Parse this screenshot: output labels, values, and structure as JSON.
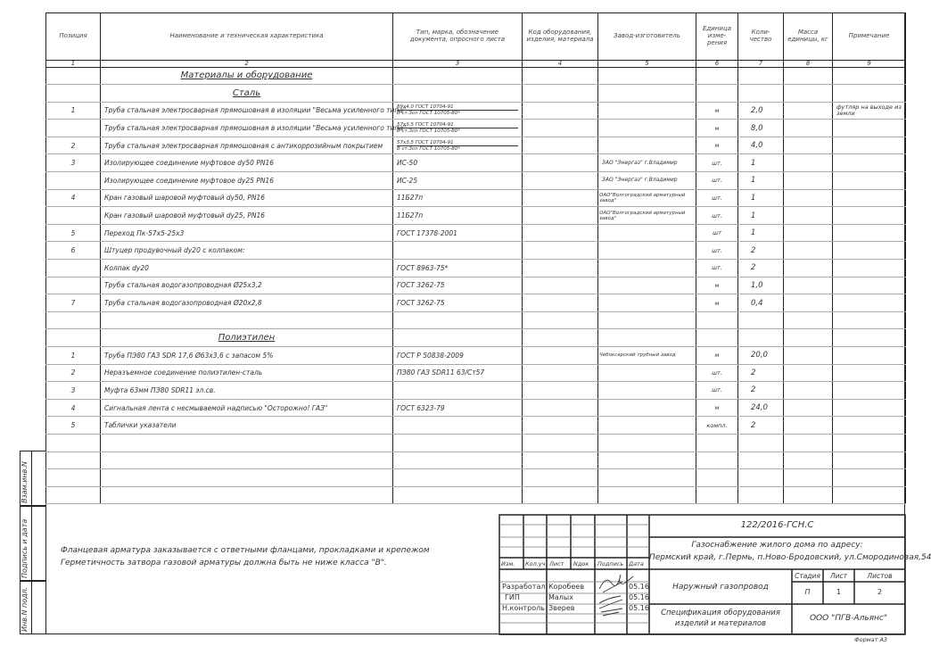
{
  "header": [
    "Позиция",
    "Наименование и техническая характеристика",
    "Тип, марка, обозначение документа, опросного листа",
    "Код оборудования, изделия, материала",
    "Завод-изготовитель",
    "Единица изме-рения",
    "Коли-чество",
    "Масса единицы, кг",
    "Примечание"
  ],
  "column_numbers": [
    "1",
    "2",
    "3",
    "4",
    "5",
    "6",
    "7",
    "8",
    "9"
  ],
  "rows": [
    {
      "heading": "Материалы и оборудование"
    },
    {
      "heading": "Сталь"
    },
    {
      "pos": "1",
      "name": "Труба стальная электросварная прямошовная в изоляции \"Весьма усиленного типа\"",
      "type": "89х4,0 ГОСТ 10704-91",
      "type2": "В ст.3сп ГОСТ 10705-80*",
      "unit": "м",
      "qty": "2,0",
      "note": "футляр на выходе из земли"
    },
    {
      "name": "Труба стальная электросварная прямошовная в изоляции \"Весьма усиленного типа\"",
      "type": "57х3,5 ГОСТ 10704-91",
      "type2": "В ст.3сп ГОСТ 10705-80*",
      "unit": "м",
      "qty": "8,0"
    },
    {
      "pos": "2",
      "name": "Труба стальная электросварная прямошовная с антикоррозийным покрытием",
      "type": "57х3,5 ГОСТ 10704-91",
      "type2": "В ст.3сп ГОСТ 10705-80*",
      "unit": "м",
      "qty": "4,0"
    },
    {
      "pos": "3",
      "name": "Изолирующее соединение муфтовое dу50 PN16",
      "type": "ИС-50",
      "maker": "ЗАО \"Энергаз\" г.Владимир",
      "unit": "шт.",
      "qty": "1"
    },
    {
      "name": "Изолирующее соединение муфтовое dу25 PN16",
      "type": "ИС-25",
      "maker": "ЗАО \"Энергаз\" г.Владимир",
      "unit": "шт.",
      "qty": "1"
    },
    {
      "pos": "4",
      "name": "Кран газовый шаровой муфтовый dу50, PN16",
      "type": "11Б27п",
      "maker": "ОАО\"Волгоградский арматурный завод\"",
      "unit": "шт.",
      "qty": "1"
    },
    {
      "name": "Кран газовый шаровой муфтовый dу25, PN16",
      "type": "11Б27п",
      "maker": "ОАО\"Волгоградский арматурный завод\"",
      "unit": "шт.",
      "qty": "1"
    },
    {
      "pos": "5",
      "name": "Переход Пк-57х5-25х3",
      "type": "ГОСТ 17378-2001",
      "unit": "шт",
      "qty": "1"
    },
    {
      "pos": "6",
      "name": "Штуцер продувочный dу20 с колпаком:",
      "unit": "шт.",
      "qty": "2"
    },
    {
      "name": "Колпак dу20",
      "type": "ГОСТ 8963-75*",
      "unit": "шт.",
      "qty": "2"
    },
    {
      "name": "Труба стальная водогазопроводная Ø25х3,2",
      "type": "ГОСТ 3262-75",
      "unit": "м",
      "qty": "1,0"
    },
    {
      "pos": "7",
      "name": "Труба стальная водогазопроводная Ø20х2,8",
      "type": "ГОСТ 3262-75",
      "unit": "м",
      "qty": "0,4"
    },
    {},
    {
      "heading": "Полиэтилен"
    },
    {
      "pos": "1",
      "name": "Труба ПЭ80 ГАЗ SDR 17,6 Ø63х3,6 с запасом 5%",
      "type": "ГОСТ Р 50838-2009",
      "maker": "Чебоксарский трубный завод",
      "unit": "м",
      "qty": "20,0"
    },
    {
      "pos": "2",
      "name": "Неразъемное соединение полиэтилен-сталь",
      "type": "ПЭ80 ГАЗ SDR11 63/Ст57",
      "unit": "шт.",
      "qty": "2"
    },
    {
      "pos": "3",
      "name": "Муфта 63мм ПЭ80 SDR11 эл.св.",
      "unit": "шт.",
      "qty": "2"
    },
    {
      "pos": "4",
      "name": "Сигнальная лента с несмываемой надписью \"Осторожно! ГАЗ\"",
      "type": "ГОСТ 6323-79",
      "unit": "м",
      "qty": "24,0"
    },
    {
      "pos": "5",
      "name": "Таблички указатели",
      "unit": "компл.",
      "qty": "2"
    },
    {},
    {},
    {},
    {}
  ],
  "notes": [
    "Фланцевая арматура заказывается с ответными фланцами, прокладками и крепежом",
    "Герметичность затвора газовой арматуры должна быть не ниже класса \"В\"."
  ],
  "side_stamp": {
    "replace": "Взам.инв.N",
    "sign_date": "Подпись и дата",
    "inv": "Инв.N подл."
  },
  "title_block": {
    "code": "122/2016-ГСН.С",
    "project_line1": "Газоснабжение жилого дома по адресу:",
    "project_line2": "Пермский край, г.Пермь, п.Ново-Бродовский, ул.Смородиновая,54",
    "cols": [
      "Изм.",
      "Кол.уч",
      "Лист",
      "Nдок",
      "Подпись",
      "Дата"
    ],
    "staff": [
      {
        "role": "Разработал",
        "name": "Коробеев",
        "date": "05.16"
      },
      {
        "role": "ГИП",
        "name": "Малых",
        "date": "05.16"
      },
      {
        "role": "Н.контроль",
        "name": "Зверев",
        "date": "05.16"
      }
    ],
    "object": "Наружный газопровод",
    "stage_label": "Стадия",
    "sheet_label": "Лист",
    "sheets_label": "Листов",
    "stage": "П",
    "sheet": "1",
    "sheets": "2",
    "doc_title_1": "Спецификация оборудования",
    "doc_title_2": "изделий и материалов",
    "company": "ООО \"ПГВ-Альянс\""
  },
  "format": "Формат А3"
}
